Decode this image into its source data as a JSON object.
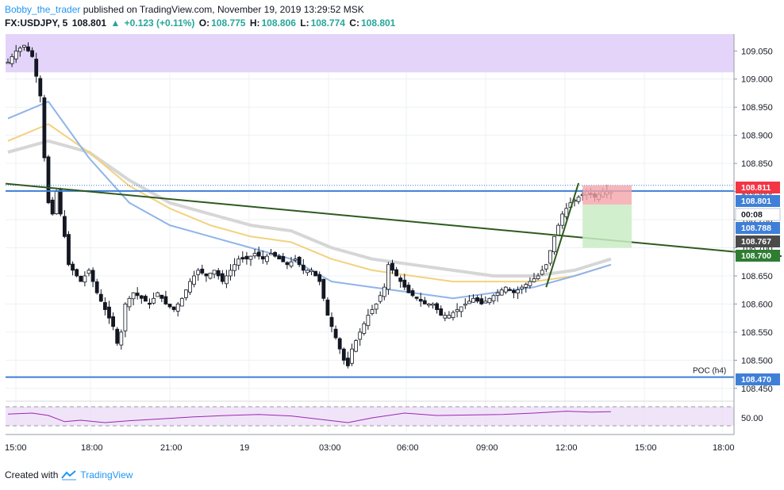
{
  "header": {
    "author": "Bobby_the_trader",
    "published": "published on TradingView.com, November 19, 2019 13:29:52 MSK",
    "symbol": "FX:USDJPY, 5",
    "last": "108.801",
    "change_arrow": "▲",
    "change": "+0.123 (+0.11%)",
    "open_label": "O:",
    "open": "108.775",
    "high_label": "H:",
    "high": "108.806",
    "low_label": "L:",
    "low": "108.774",
    "close_label": "C:",
    "close": "108.801"
  },
  "footer": {
    "created_with": "Created with",
    "brand": "TradingView",
    "logo_icon": "tradingview-logo-icon"
  },
  "colors": {
    "bull": "#ffffff",
    "bear": "#131722",
    "zone": "#e1cdf9",
    "blue_line": "#3f7fd8",
    "trendline": "#2e5a1f",
    "ma_blue": "#8fb4ea",
    "ma_gold": "#f2d27f",
    "ma_gray": "#d6d6d6",
    "rsi": "#9c27b0",
    "red_tag": "#f23645",
    "green_tag": "#26a69a",
    "blue_tag": "#3f7fd8",
    "dark_tag": "#4a4a4a"
  },
  "chart_data": {
    "type": "candlestick",
    "price_axis_ticks": [
      "109.050",
      "109.000",
      "108.950",
      "108.900",
      "108.850",
      "108.800",
      "108.750",
      "108.700",
      "108.650",
      "108.600",
      "108.550",
      "108.500",
      "108.450"
    ],
    "time_axis_ticks": [
      "15:00",
      "18:00",
      "21:00",
      "19",
      "03:00",
      "06:00",
      "09:00",
      "12:00",
      "15:00",
      "18:00"
    ],
    "rsi_axis_ticks": [
      "50.00"
    ],
    "ylim": [
      108.43,
      109.08
    ],
    "price_labels": [
      {
        "text": "108.811",
        "value": 108.811,
        "kind": "red"
      },
      {
        "text": "108.801",
        "value": 108.801,
        "kind": "blue"
      },
      {
        "text": "00:08",
        "kind": "countdown"
      },
      {
        "text": "108.788",
        "value": 108.788,
        "kind": "blue"
      },
      {
        "text": "108.767",
        "value": 108.767,
        "kind": "dark"
      },
      {
        "text": "108.700",
        "value": 108.7,
        "kind": "green"
      },
      {
        "text": "108.470",
        "value": 108.47,
        "kind": "blue"
      }
    ],
    "annotations": [
      {
        "text": "POC (h4)"
      }
    ],
    "supply_zone": [
      109.012,
      109.08
    ],
    "horizontal_levels": [
      108.801,
      108.47
    ],
    "trendline": {
      "from": [
        "15:00",
        108.814
      ],
      "to": [
        "18:00+",
        108.685
      ]
    },
    "position_box": {
      "entry": 108.788,
      "stop": 108.811,
      "target": 108.7
    },
    "close_path": [
      [
        0,
        109.03
      ],
      [
        2,
        109.05
      ],
      [
        4,
        109.06
      ],
      [
        6,
        109.04
      ],
      [
        8,
        108.97
      ],
      [
        9,
        108.86
      ],
      [
        10,
        108.78
      ],
      [
        11,
        108.76
      ],
      [
        12,
        108.8
      ],
      [
        13,
        108.76
      ],
      [
        14,
        108.72
      ],
      [
        15,
        108.67
      ],
      [
        16,
        108.66
      ],
      [
        18,
        108.64
      ],
      [
        20,
        108.66
      ],
      [
        22,
        108.62
      ],
      [
        24,
        108.59
      ],
      [
        26,
        108.56
      ],
      [
        27,
        108.53
      ],
      [
        28,
        108.55
      ],
      [
        29,
        108.6
      ],
      [
        31,
        108.62
      ],
      [
        33,
        108.61
      ],
      [
        35,
        108.6
      ],
      [
        37,
        108.62
      ],
      [
        39,
        108.6
      ],
      [
        41,
        108.59
      ],
      [
        43,
        108.61
      ],
      [
        45,
        108.64
      ],
      [
        47,
        108.66
      ],
      [
        49,
        108.65
      ],
      [
        51,
        108.66
      ],
      [
        53,
        108.64
      ],
      [
        55,
        108.66
      ],
      [
        57,
        108.68
      ],
      [
        59,
        108.68
      ],
      [
        61,
        108.69
      ],
      [
        63,
        108.68
      ],
      [
        65,
        108.69
      ],
      [
        67,
        108.68
      ],
      [
        69,
        108.67
      ],
      [
        71,
        108.68
      ],
      [
        73,
        108.66
      ],
      [
        75,
        108.66
      ],
      [
        77,
        108.64
      ],
      [
        79,
        108.58
      ],
      [
        81,
        108.54
      ],
      [
        83,
        108.5
      ],
      [
        84,
        108.49
      ],
      [
        85,
        108.52
      ],
      [
        87,
        108.55
      ],
      [
        89,
        108.58
      ],
      [
        91,
        108.6
      ],
      [
        93,
        108.63
      ],
      [
        94,
        108.67
      ],
      [
        95,
        108.66
      ],
      [
        97,
        108.64
      ],
      [
        99,
        108.62
      ],
      [
        101,
        108.61
      ],
      [
        103,
        108.6
      ],
      [
        105,
        108.6
      ],
      [
        107,
        108.58
      ],
      [
        109,
        108.58
      ],
      [
        111,
        108.59
      ],
      [
        113,
        108.6
      ],
      [
        115,
        108.61
      ],
      [
        117,
        108.6
      ],
      [
        119,
        108.61
      ],
      [
        121,
        108.62
      ],
      [
        123,
        108.63
      ],
      [
        125,
        108.62
      ],
      [
        127,
        108.63
      ],
      [
        129,
        108.64
      ],
      [
        131,
        108.65
      ],
      [
        133,
        108.67
      ],
      [
        135,
        108.72
      ],
      [
        137,
        108.76
      ],
      [
        139,
        108.78
      ],
      [
        141,
        108.79
      ],
      [
        143,
        108.8
      ],
      [
        145,
        108.79
      ],
      [
        147,
        108.8
      ],
      [
        149,
        108.8
      ]
    ],
    "ma_blue": [
      [
        0,
        108.93
      ],
      [
        10,
        108.96
      ],
      [
        20,
        108.86
      ],
      [
        30,
        108.78
      ],
      [
        40,
        108.74
      ],
      [
        50,
        108.72
      ],
      [
        60,
        108.7
      ],
      [
        70,
        108.68
      ],
      [
        80,
        108.64
      ],
      [
        90,
        108.63
      ],
      [
        100,
        108.62
      ],
      [
        110,
        108.61
      ],
      [
        120,
        108.62
      ],
      [
        130,
        108.63
      ],
      [
        140,
        108.65
      ],
      [
        149,
        108.67
      ]
    ],
    "ma_gold": [
      [
        0,
        108.89
      ],
      [
        10,
        108.92
      ],
      [
        20,
        108.87
      ],
      [
        30,
        108.81
      ],
      [
        40,
        108.77
      ],
      [
        50,
        108.74
      ],
      [
        60,
        108.72
      ],
      [
        70,
        108.71
      ],
      [
        80,
        108.68
      ],
      [
        90,
        108.66
      ],
      [
        100,
        108.65
      ],
      [
        110,
        108.64
      ],
      [
        120,
        108.64
      ],
      [
        130,
        108.64
      ],
      [
        140,
        108.65
      ],
      [
        149,
        108.67
      ]
    ],
    "ma_gray": [
      [
        0,
        108.87
      ],
      [
        10,
        108.89
      ],
      [
        20,
        108.87
      ],
      [
        30,
        108.82
      ],
      [
        40,
        108.78
      ],
      [
        50,
        108.76
      ],
      [
        60,
        108.74
      ],
      [
        70,
        108.73
      ],
      [
        80,
        108.7
      ],
      [
        90,
        108.68
      ],
      [
        100,
        108.67
      ],
      [
        110,
        108.66
      ],
      [
        120,
        108.65
      ],
      [
        130,
        108.65
      ],
      [
        140,
        108.66
      ],
      [
        149,
        108.68
      ]
    ],
    "rsi": [
      [
        0,
        58
      ],
      [
        6,
        60
      ],
      [
        10,
        55
      ],
      [
        14,
        42
      ],
      [
        18,
        45
      ],
      [
        24,
        40
      ],
      [
        30,
        44
      ],
      [
        38,
        48
      ],
      [
        46,
        52
      ],
      [
        54,
        55
      ],
      [
        62,
        57
      ],
      [
        70,
        54
      ],
      [
        78,
        46
      ],
      [
        84,
        40
      ],
      [
        90,
        50
      ],
      [
        98,
        60
      ],
      [
        106,
        55
      ],
      [
        114,
        56
      ],
      [
        122,
        57
      ],
      [
        130,
        60
      ],
      [
        138,
        64
      ],
      [
        144,
        62
      ],
      [
        149,
        63
      ]
    ],
    "rsi_bands": [
      70,
      30
    ]
  }
}
